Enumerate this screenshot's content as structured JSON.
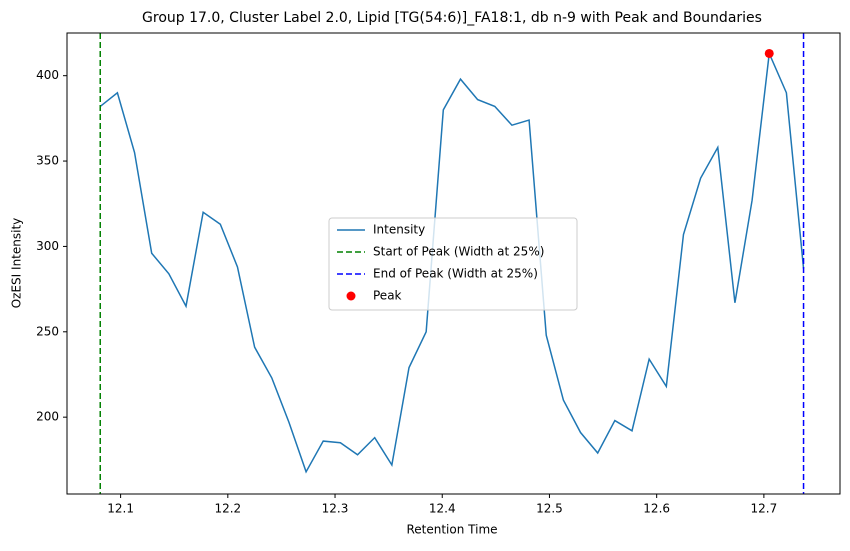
{
  "chart_data": {
    "type": "line",
    "title": "Group 17.0, Cluster Label 2.0, Lipid [TG(54:6)]_FA18:1, db n-9 with Peak and Boundaries",
    "x_label": "Retention Time",
    "y_label": "OzESI Intensity",
    "x": [
      12.081,
      12.097,
      12.113,
      12.129,
      12.145,
      12.161,
      12.177,
      12.193,
      12.209,
      12.225,
      12.241,
      12.257,
      12.273,
      12.289,
      12.305,
      12.321,
      12.337,
      12.353,
      12.369,
      12.385,
      12.401,
      12.417,
      12.433,
      12.449,
      12.465,
      12.481,
      12.497,
      12.513,
      12.529,
      12.545,
      12.561,
      12.577,
      12.593,
      12.609,
      12.625,
      12.641,
      12.657,
      12.673,
      12.689,
      12.705,
      12.721,
      12.737
    ],
    "series": [
      {
        "name": "Intensity",
        "color": "#1f77b4",
        "values": [
          382,
          390,
          355,
          296,
          284,
          265,
          320,
          313,
          288,
          241,
          223,
          197,
          168,
          186,
          185,
          178,
          188,
          172,
          229,
          250,
          380,
          398,
          386,
          382,
          371,
          374,
          248,
          210,
          191,
          179,
          198,
          192,
          234,
          218,
          307,
          340,
          358,
          267,
          327,
          413,
          390,
          287
        ]
      }
    ],
    "vlines": [
      {
        "name": "Start of Peak (Width at 25%)",
        "color": "#008000",
        "x": 12.081
      },
      {
        "name": "End of Peak (Width at 25%)",
        "color": "#0000ff",
        "x": 12.737
      }
    ],
    "points": [
      {
        "name": "Peak",
        "color": "#ff0000",
        "x": 12.705,
        "y": 413
      }
    ],
    "xlim": [
      12.05,
      12.771
    ],
    "ylim": [
      155,
      425
    ],
    "xticks": [
      12.1,
      12.2,
      12.3,
      12.4,
      12.5,
      12.6,
      12.7
    ],
    "yticks": [
      200,
      250,
      300,
      350,
      400
    ]
  }
}
